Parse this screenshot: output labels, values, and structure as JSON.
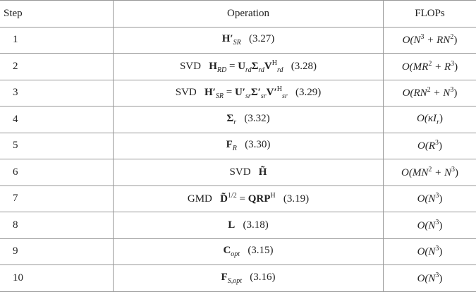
{
  "table": {
    "header": [
      "Step",
      "Operation",
      "FLOPs"
    ],
    "rows": [
      {
        "step": "1",
        "operation": [
          {
            "t": "H′",
            "f": "bold"
          },
          {
            "t": "SR",
            "f": "sub"
          },
          {
            "t": "   (3.27)"
          }
        ],
        "flops": [
          {
            "t": "O(N",
            "f": "ital"
          },
          {
            "t": "3",
            "f": "sup"
          },
          {
            "t": " + RN",
            "f": "ital"
          },
          {
            "t": "2",
            "f": "sup"
          },
          {
            "t": ")"
          }
        ]
      },
      {
        "step": "2",
        "operation": [
          {
            "t": "SVD   "
          },
          {
            "t": "H",
            "f": "bold"
          },
          {
            "t": "RD",
            "f": "sub"
          },
          {
            "t": " = "
          },
          {
            "t": "U",
            "f": "bold"
          },
          {
            "t": "rd",
            "f": "sub"
          },
          {
            "t": "Σ",
            "f": "bold"
          },
          {
            "t": "rd",
            "f": "sub"
          },
          {
            "t": "V",
            "f": "bold"
          },
          {
            "t": "H",
            "f": "sup"
          },
          {
            "t": "rd",
            "f": "sub"
          },
          {
            "t": "   (3.28)"
          }
        ],
        "flops": [
          {
            "t": "O(MR",
            "f": "ital"
          },
          {
            "t": "2",
            "f": "sup"
          },
          {
            "t": " + R",
            "f": "ital"
          },
          {
            "t": "3",
            "f": "sup"
          },
          {
            "t": ")"
          }
        ]
      },
      {
        "step": "3",
        "operation": [
          {
            "t": "SVD   "
          },
          {
            "t": "H′",
            "f": "bold"
          },
          {
            "t": "SR",
            "f": "sub"
          },
          {
            "t": " = "
          },
          {
            "t": "U′",
            "f": "bold"
          },
          {
            "t": "sr",
            "f": "sub"
          },
          {
            "t": "Σ′",
            "f": "bold"
          },
          {
            "t": "sr",
            "f": "sub"
          },
          {
            "t": "V′",
            "f": "bold"
          },
          {
            "t": "H",
            "f": "sup"
          },
          {
            "t": "sr",
            "f": "sub"
          },
          {
            "t": "   (3.29)"
          }
        ],
        "flops": [
          {
            "t": "O(RN",
            "f": "ital"
          },
          {
            "t": "2",
            "f": "sup"
          },
          {
            "t": " + N",
            "f": "ital"
          },
          {
            "t": "3",
            "f": "sup"
          },
          {
            "t": ")"
          }
        ]
      },
      {
        "step": "4",
        "operation": [
          {
            "t": "Σ",
            "f": "bold"
          },
          {
            "t": "r",
            "f": "sub"
          },
          {
            "t": "   (3.32)"
          }
        ],
        "flops": [
          {
            "t": "O(κI",
            "f": "ital"
          },
          {
            "t": "r",
            "f": "sub"
          },
          {
            "t": ")"
          }
        ]
      },
      {
        "step": "5",
        "operation": [
          {
            "t": "F",
            "f": "bold"
          },
          {
            "t": "R",
            "f": "sub"
          },
          {
            "t": "   (3.30)"
          }
        ],
        "flops": [
          {
            "t": "O(R",
            "f": "ital"
          },
          {
            "t": "3",
            "f": "sup"
          },
          {
            "t": ")"
          }
        ]
      },
      {
        "step": "6",
        "operation": [
          {
            "t": "SVD   "
          },
          {
            "t": "H̃",
            "f": "bold"
          }
        ],
        "flops": [
          {
            "t": "O(MN",
            "f": "ital"
          },
          {
            "t": "2",
            "f": "sup"
          },
          {
            "t": " + N",
            "f": "ital"
          },
          {
            "t": "3",
            "f": "sup"
          },
          {
            "t": ")"
          }
        ]
      },
      {
        "step": "7",
        "operation": [
          {
            "t": "GMD   "
          },
          {
            "t": "D̃",
            "f": "bold"
          },
          {
            "t": "1/2",
            "f": "sup"
          },
          {
            "t": " = "
          },
          {
            "t": "QRP",
            "f": "bold"
          },
          {
            "t": "H",
            "f": "sup"
          },
          {
            "t": "   (3.19)"
          }
        ],
        "flops": [
          {
            "t": "O(N",
            "f": "ital"
          },
          {
            "t": "3",
            "f": "sup"
          },
          {
            "t": ")"
          }
        ]
      },
      {
        "step": "8",
        "operation": [
          {
            "t": "L",
            "f": "bold"
          },
          {
            "t": "   (3.18)"
          }
        ],
        "flops": [
          {
            "t": "O(N",
            "f": "ital"
          },
          {
            "t": "3",
            "f": "sup"
          },
          {
            "t": ")"
          }
        ]
      },
      {
        "step": "9",
        "operation": [
          {
            "t": "C",
            "f": "bold"
          },
          {
            "t": "opt",
            "f": "sub"
          },
          {
            "t": "   (3.15)"
          }
        ],
        "flops": [
          {
            "t": "O(N",
            "f": "ital"
          },
          {
            "t": "3",
            "f": "sup"
          },
          {
            "t": ")"
          }
        ]
      },
      {
        "step": "10",
        "operation": [
          {
            "t": "F",
            "f": "bold"
          },
          {
            "t": "S,opt",
            "f": "sub"
          },
          {
            "t": "   (3.16)"
          }
        ],
        "flops": [
          {
            "t": "O(N",
            "f": "ital"
          },
          {
            "t": "3",
            "f": "sup"
          },
          {
            "t": ")"
          }
        ]
      }
    ]
  }
}
